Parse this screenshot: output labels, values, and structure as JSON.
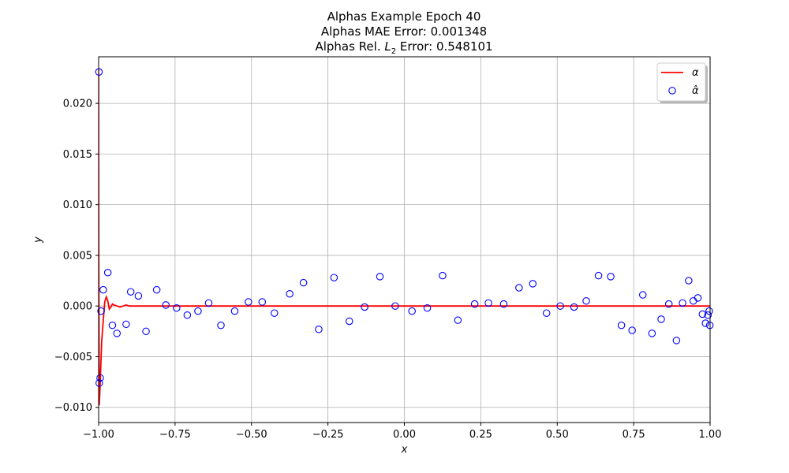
{
  "chart_data": {
    "type": "line",
    "title_lines": [
      "Alphas Example Epoch 40",
      "Alphas MAE Error: 0.001348"
    ],
    "title_l2": {
      "prefix": "Alphas Rel. ",
      "symbol": "L",
      "subscript": "2",
      "suffix": " Error: 0.548101"
    },
    "xlabel": "x",
    "ylabel": "y",
    "xlim": [
      -1.0,
      1.0
    ],
    "ylim": [
      -0.0115,
      0.0246
    ],
    "xticks": [
      -1.0,
      -0.75,
      -0.5,
      -0.25,
      0.0,
      0.25,
      0.5,
      0.75,
      1.0
    ],
    "xtick_labels": [
      "−1.00",
      "−0.75",
      "−0.50",
      "−0.25",
      "0.00",
      "0.25",
      "0.50",
      "0.75",
      "1.00"
    ],
    "yticks": [
      -0.01,
      -0.005,
      0.0,
      0.005,
      0.01,
      0.015,
      0.02
    ],
    "ytick_labels": [
      "−0.010",
      "−0.005",
      "0.000",
      "0.005",
      "0.010",
      "0.015",
      "0.020"
    ],
    "grid": true,
    "legend_position": "top-right",
    "series": [
      {
        "name": "α",
        "style": "line",
        "color": "#ff0000",
        "x": [
          -1.0,
          -0.9995,
          -0.998,
          -0.996,
          -0.993,
          -0.99,
          -0.985,
          -0.98,
          -0.975,
          -0.97,
          -0.965,
          -0.96,
          -0.955,
          -0.95,
          -0.94,
          -0.93,
          -0.92,
          -0.91,
          -0.9,
          -0.85,
          -0.8,
          -0.5,
          0.0,
          0.5,
          1.0
        ],
        "y": [
          0.0234,
          0.005,
          -0.0098,
          -0.0085,
          -0.006,
          -0.0035,
          -0.0015,
          0.0004,
          0.0009,
          0.0005,
          -0.0003,
          -0.0001,
          0.0002,
          0.0001,
          0.0,
          -0.0001,
          0.0,
          0.0001,
          0.0,
          0.0,
          0.0,
          0.0,
          0.0,
          0.0,
          0.0
        ]
      },
      {
        "name": "α̂",
        "style": "scatter",
        "color": "#0000ff",
        "x": [
          -0.999,
          -0.998,
          -0.995,
          -0.992,
          -0.985,
          -0.97,
          -0.955,
          -0.94,
          -0.91,
          -0.895,
          -0.87,
          -0.845,
          -0.81,
          -0.78,
          -0.745,
          -0.71,
          -0.675,
          -0.64,
          -0.6,
          -0.555,
          -0.51,
          -0.465,
          -0.425,
          -0.375,
          -0.33,
          -0.28,
          -0.23,
          -0.18,
          -0.13,
          -0.08,
          -0.03,
          0.025,
          0.075,
          0.125,
          0.175,
          0.23,
          0.275,
          0.325,
          0.375,
          0.42,
          0.465,
          0.51,
          0.555,
          0.595,
          0.635,
          0.675,
          0.71,
          0.745,
          0.78,
          0.81,
          0.84,
          0.865,
          0.89,
          0.91,
          0.93,
          0.945,
          0.96,
          0.975,
          0.985,
          0.993,
          0.997,
          0.999
        ],
        "y": [
          0.0231,
          -0.0076,
          -0.0071,
          -0.0005,
          0.0016,
          0.0033,
          -0.0019,
          -0.0027,
          -0.0018,
          0.0014,
          0.001,
          -0.0025,
          0.0016,
          0.0001,
          -0.0002,
          -0.0009,
          -0.0005,
          0.0003,
          -0.0019,
          -0.0005,
          0.0004,
          0.0004,
          -0.0007,
          0.0012,
          0.0023,
          -0.0023,
          0.0028,
          -0.0015,
          -0.0001,
          0.0029,
          0.0,
          -0.0005,
          -0.0002,
          0.003,
          -0.0014,
          0.0002,
          0.0003,
          0.0002,
          0.0018,
          0.0022,
          -0.0007,
          0.0,
          -0.0001,
          0.0005,
          0.003,
          0.0029,
          -0.0019,
          -0.0024,
          0.0011,
          -0.0027,
          -0.0013,
          0.0002,
          -0.0034,
          0.0003,
          0.0025,
          0.0005,
          0.0008,
          -0.0008,
          -0.0017,
          -0.0009,
          -0.0005,
          -0.0019
        ]
      }
    ]
  }
}
